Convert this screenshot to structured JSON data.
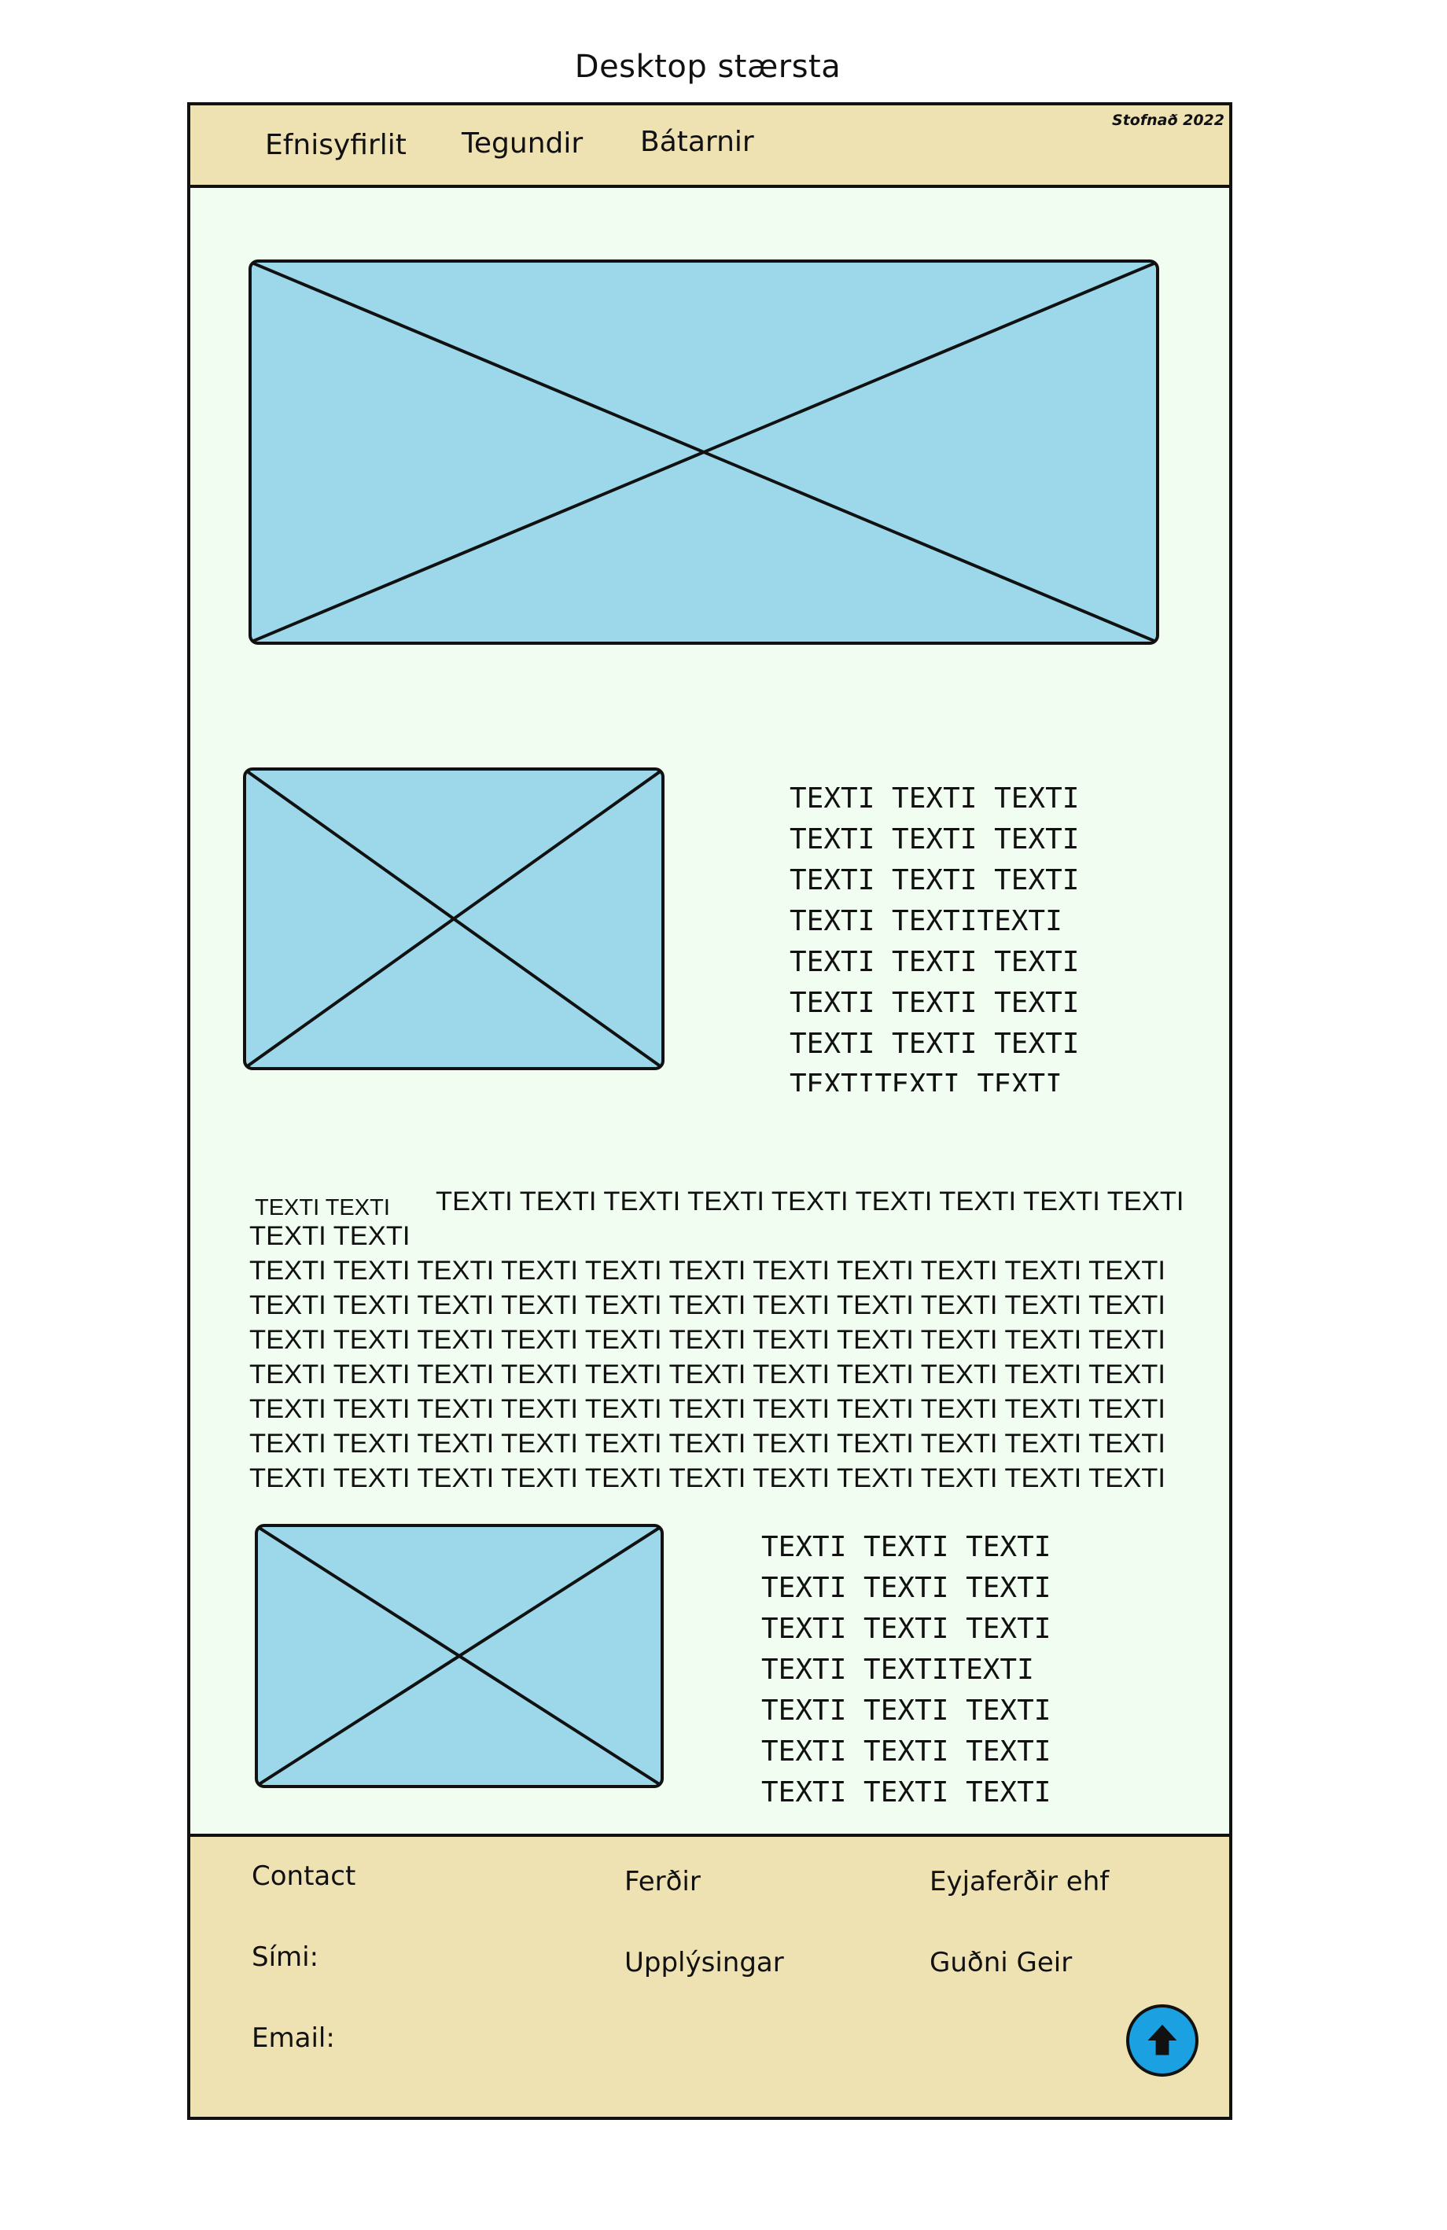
{
  "page_title": "Desktop stærsta",
  "header": {
    "nav": [
      "Efnisyfirlit",
      "Tegundir",
      "Bátarnir"
    ],
    "established": "Stofnað 2022"
  },
  "images": {
    "hero": "image-placeholder",
    "section1": "image-placeholder",
    "section3": "image-placeholder"
  },
  "section1": {
    "lines": [
      "TEXTI TEXTI TEXTI",
      "TEXTI TEXTI TEXTI",
      "TEXTI TEXTI TEXTI",
      "TEXTI TEXTITEXTI",
      "TEXTI TEXTI TEXTI",
      "TEXTI TEXTI TEXTI",
      "TEXTI TEXTI TEXTI",
      "TEXTITEXTI TEXTI"
    ]
  },
  "section2": {
    "small_heading": "TEXTI TEXTI",
    "heading_right": "TEXTI TEXTI TEXTI TEXTI TEXTI TEXTI TEXTI TEXTI TEXTI",
    "second_line": "TEXTI TEXTI",
    "lines": [
      "TEXTI TEXTI TEXTI TEXTI TEXTI TEXTI TEXTI TEXTI TEXTI TEXTI TEXTI",
      "TEXTI TEXTI TEXTI TEXTI TEXTI TEXTI TEXTI TEXTI TEXTI TEXTI TEXTI",
      "TEXTI TEXTI TEXTI TEXTI TEXTI TEXTI TEXTI TEXTI TEXTI TEXTI TEXTI",
      "TEXTI TEXTI TEXTI TEXTI TEXTI TEXTI TEXTI TEXTI TEXTI TEXTI TEXTI",
      "TEXTI TEXTI TEXTI TEXTI TEXTI TEXTI TEXTI TEXTI TEXTI TEXTI TEXTI",
      "TEXTI TEXTI TEXTI TEXTI TEXTI TEXTI TEXTI TEXTI TEXTI TEXTI TEXTI",
      "TEXTI TEXTI TEXTI TEXTI TEXTI TEXTI TEXTI TEXTI TEXTI TEXTI TEXTI"
    ]
  },
  "section3": {
    "lines": [
      "TEXTI TEXTI TEXTI",
      "TEXTI TEXTI TEXTI",
      "TEXTI TEXTI TEXTI",
      "TEXTI TEXTITEXTI",
      "TEXTI TEXTI TEXTI",
      "TEXTI TEXTI TEXTI",
      "TEXTI TEXTI TEXTI"
    ]
  },
  "footer": {
    "contact": "Contact",
    "phone_label": "Sími:",
    "email_label": "Email:",
    "tours": "Ferðir",
    "info": "Upplýsingar",
    "company": "Eyjaferðir ehf",
    "person": "Guðni Geir",
    "back_to_top_icon": "arrow-up-icon"
  },
  "colors": {
    "header_footer_bg": "#efe2b2",
    "body_bg": "#f0fdf0",
    "image_fill": "#9dd8ea",
    "button_fill": "#1ba1e2"
  }
}
